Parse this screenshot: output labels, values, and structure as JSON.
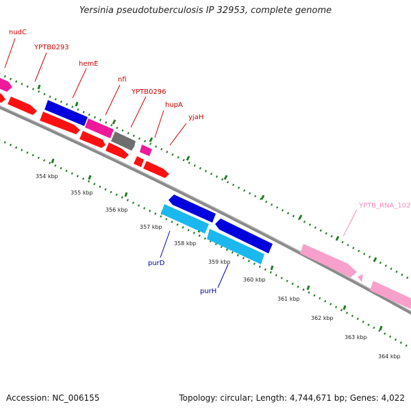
{
  "header": {
    "title": "Yersinia pseudotuberculosis IP 32953, complete genome"
  },
  "footer": {
    "accession": "Accession: NC_006155",
    "summary": "Topology: circular; Length: 4,744,671 bp; Genes: 4,022"
  },
  "colors": {
    "forward_gene": "#ff1010",
    "reverse_gene": "#0000dd",
    "reverse_gene_light": "#1ab8ee",
    "misc_gene": "#ee1a9a",
    "pseudo_gene": "#6e6e6e",
    "rna_gene": "#f7a0cc",
    "backbone": "#8a8a8a",
    "tick": "#207a20",
    "label_red": "#cc0000",
    "label_blue": "#0000aa",
    "label_pink": "#f08cbe"
  },
  "scale_labels": [
    "354 kbp",
    "355 kbp",
    "356 kbp",
    "357 kbp",
    "358 kbp",
    "359 kbp",
    "360 kbp",
    "361 kbp",
    "362 kbp",
    "363 kbp",
    "364 kbp"
  ],
  "gene_labels": {
    "nudC": "nudC",
    "YPTB0293": "YPTB0293",
    "hemE": "hemE",
    "nfi": "nfi",
    "YPTB0296": "YPTB0296",
    "hupA": "hupA",
    "yjaH": "yjaH",
    "purD": "purD",
    "purH": "purH",
    "YPTB_RNA_102": "YPTB_RNA_102"
  }
}
